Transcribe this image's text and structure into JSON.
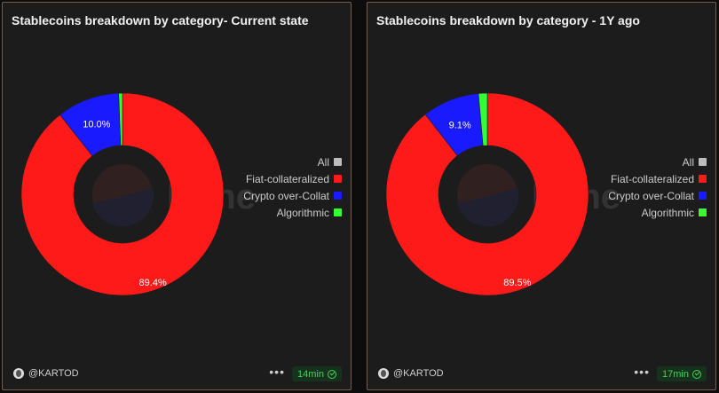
{
  "panels": [
    {
      "title": "Stablecoins breakdown by category- Current state",
      "author": "@KARTOD",
      "more_label": "•••",
      "age": "14min",
      "watermark": "Dune"
    },
    {
      "title": "Stablecoins breakdown by category - 1Y ago",
      "author": "@KARTOD",
      "more_label": "•••",
      "age": "17min",
      "watermark": "Dune"
    }
  ],
  "legend": [
    {
      "label": "All",
      "color": "#bdbdbd"
    },
    {
      "label": "Fiat-collateralized",
      "color": "#ff1a1a"
    },
    {
      "label": "Crypto over-Collat",
      "color": "#1a1aff"
    },
    {
      "label": "Algorithmic",
      "color": "#33ff33"
    }
  ],
  "chart_data": [
    {
      "type": "pie",
      "donut": true,
      "title": "Stablecoins breakdown by category- Current state",
      "categories": [
        "Fiat-collateralized",
        "Crypto over-Collat",
        "Algorithmic"
      ],
      "values": [
        89.4,
        10.0,
        0.6
      ],
      "data_labels": [
        "89.4%",
        "10.0%",
        ""
      ],
      "colors": [
        "#ff1a1a",
        "#1a1aff",
        "#33ff33"
      ],
      "legend_position": "right"
    },
    {
      "type": "pie",
      "donut": true,
      "title": "Stablecoins breakdown by category - 1Y ago",
      "categories": [
        "Fiat-collateralized",
        "Crypto over-Collat",
        "Algorithmic"
      ],
      "values": [
        89.5,
        9.1,
        1.4
      ],
      "data_labels": [
        "89.5%",
        "9.1%",
        ""
      ],
      "colors": [
        "#ff1a1a",
        "#1a1aff",
        "#33ff33"
      ],
      "legend_position": "right"
    }
  ]
}
